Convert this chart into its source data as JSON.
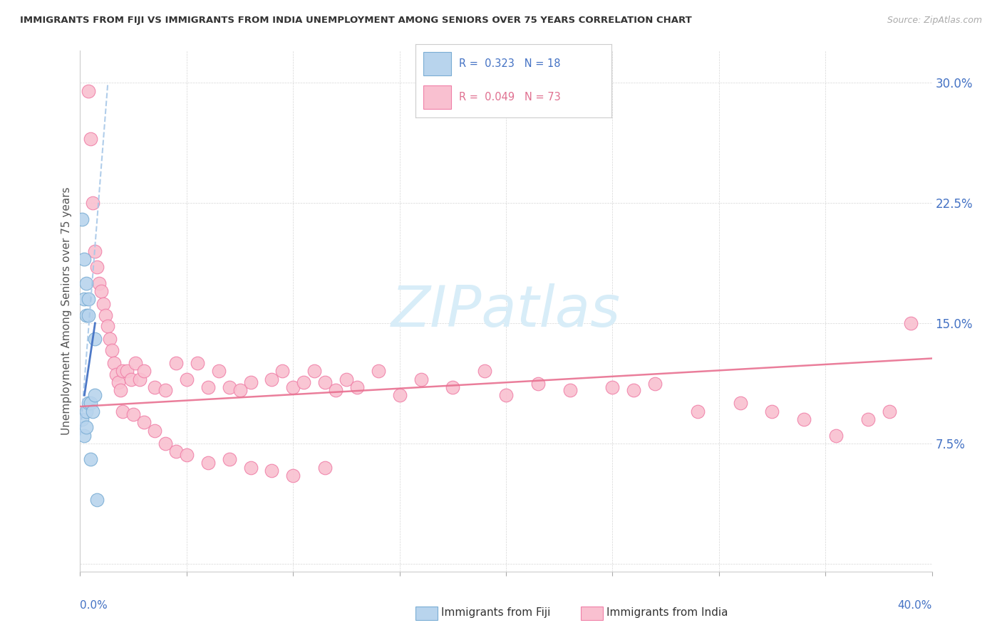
{
  "title": "IMMIGRANTS FROM FIJI VS IMMIGRANTS FROM INDIA UNEMPLOYMENT AMONG SENIORS OVER 75 YEARS CORRELATION CHART",
  "source": "Source: ZipAtlas.com",
  "ylabel": "Unemployment Among Seniors over 75 years",
  "xlim": [
    0.0,
    0.4
  ],
  "ylim": [
    -0.005,
    0.32
  ],
  "fiji_color": "#b8d4ed",
  "india_color": "#f9c0d0",
  "fiji_edge": "#7aadd4",
  "india_edge": "#f080a8",
  "fiji_trend_color": "#4472c4",
  "fiji_dash_color": "#a8c8e8",
  "india_trend_color": "#e87090",
  "ytick_vals": [
    0.0,
    0.075,
    0.15,
    0.225,
    0.3
  ],
  "ytick_labels": [
    "",
    "7.5%",
    "15.0%",
    "22.5%",
    "30.0%"
  ],
  "watermark": "ZIPatlas",
  "watermark_color": "#d8edf8",
  "fiji_label": "Immigrants from Fiji",
  "india_label": "Immigrants from India",
  "legend_fiji_label": "R =  0.323   N = 18",
  "legend_india_label": "R =  0.049   N = 73",
  "fiji_x": [
    0.001,
    0.001,
    0.002,
    0.002,
    0.002,
    0.003,
    0.003,
    0.003,
    0.003,
    0.004,
    0.004,
    0.004,
    0.005,
    0.005,
    0.006,
    0.007,
    0.007,
    0.008
  ],
  "fiji_y": [
    0.215,
    0.09,
    0.19,
    0.165,
    0.08,
    0.175,
    0.155,
    0.095,
    0.085,
    0.165,
    0.155,
    0.1,
    0.1,
    0.065,
    0.095,
    0.14,
    0.105,
    0.04
  ],
  "india_x": [
    0.004,
    0.005,
    0.006,
    0.007,
    0.008,
    0.009,
    0.01,
    0.011,
    0.012,
    0.013,
    0.014,
    0.015,
    0.016,
    0.017,
    0.018,
    0.019,
    0.02,
    0.022,
    0.024,
    0.026,
    0.028,
    0.03,
    0.035,
    0.04,
    0.045,
    0.05,
    0.055,
    0.06,
    0.065,
    0.07,
    0.075,
    0.08,
    0.09,
    0.095,
    0.1,
    0.105,
    0.11,
    0.115,
    0.12,
    0.125,
    0.13,
    0.14,
    0.15,
    0.16,
    0.175,
    0.19,
    0.2,
    0.215,
    0.23,
    0.25,
    0.26,
    0.27,
    0.29,
    0.31,
    0.325,
    0.34,
    0.355,
    0.37,
    0.38,
    0.39,
    0.02,
    0.025,
    0.03,
    0.035,
    0.04,
    0.045,
    0.05,
    0.06,
    0.07,
    0.08,
    0.09,
    0.1,
    0.115
  ],
  "india_y": [
    0.295,
    0.265,
    0.225,
    0.195,
    0.185,
    0.175,
    0.17,
    0.162,
    0.155,
    0.148,
    0.14,
    0.133,
    0.125,
    0.118,
    0.113,
    0.108,
    0.12,
    0.12,
    0.115,
    0.125,
    0.115,
    0.12,
    0.11,
    0.108,
    0.125,
    0.115,
    0.125,
    0.11,
    0.12,
    0.11,
    0.108,
    0.113,
    0.115,
    0.12,
    0.11,
    0.113,
    0.12,
    0.113,
    0.108,
    0.115,
    0.11,
    0.12,
    0.105,
    0.115,
    0.11,
    0.12,
    0.105,
    0.112,
    0.108,
    0.11,
    0.108,
    0.112,
    0.095,
    0.1,
    0.095,
    0.09,
    0.08,
    0.09,
    0.095,
    0.15,
    0.095,
    0.093,
    0.088,
    0.083,
    0.075,
    0.07,
    0.068,
    0.063,
    0.065,
    0.06,
    0.058,
    0.055,
    0.06
  ]
}
